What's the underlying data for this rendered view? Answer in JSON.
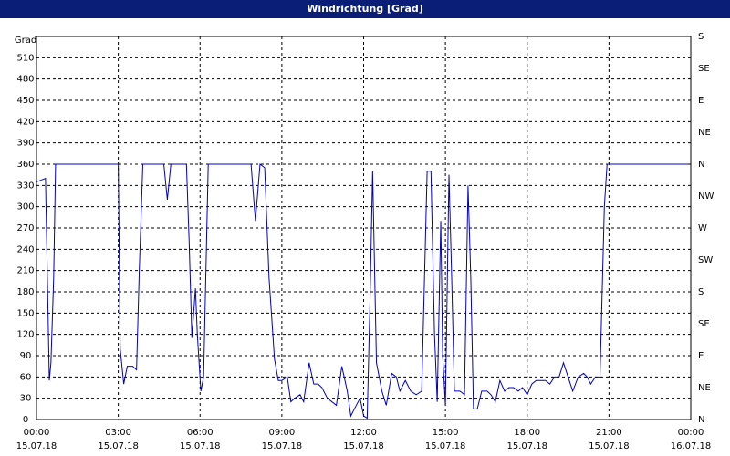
{
  "chart_data": {
    "type": "line",
    "title": "Windrichtung [Grad]",
    "y_label": "Grad",
    "xlim": [
      0,
      24
    ],
    "ylim": [
      0,
      540
    ],
    "y2lim": [
      0,
      540
    ],
    "grid": true,
    "xticks": [
      {
        "value": 0,
        "label": "00:00",
        "date": "15.07.18"
      },
      {
        "value": 3,
        "label": "03:00",
        "date": "15.07.18"
      },
      {
        "value": 6,
        "label": "06:00",
        "date": "15.07.18"
      },
      {
        "value": 9,
        "label": "09:00",
        "date": "15.07.18"
      },
      {
        "value": 12,
        "label": "12:00",
        "date": "15.07.18"
      },
      {
        "value": 15,
        "label": "15:00",
        "date": "15.07.18"
      },
      {
        "value": 18,
        "label": "18:00",
        "date": "15.07.18"
      },
      {
        "value": 21,
        "label": "21:00",
        "date": "15.07.18"
      },
      {
        "value": 24,
        "label": "00:00",
        "date": "16.07.18"
      }
    ],
    "yticks": [
      0,
      30,
      60,
      90,
      120,
      150,
      180,
      210,
      240,
      270,
      300,
      330,
      360,
      390,
      420,
      450,
      480,
      510
    ],
    "y2ticks": [
      {
        "value": 0,
        "label": "N"
      },
      {
        "value": 45,
        "label": "NE"
      },
      {
        "value": 90,
        "label": "E"
      },
      {
        "value": 135,
        "label": "SE"
      },
      {
        "value": 180,
        "label": "S"
      },
      {
        "value": 225,
        "label": "SW"
      },
      {
        "value": 270,
        "label": "W"
      },
      {
        "value": 315,
        "label": "NW"
      },
      {
        "value": 360,
        "label": "N"
      },
      {
        "value": 405,
        "label": "NE"
      },
      {
        "value": 450,
        "label": "E"
      },
      {
        "value": 495,
        "label": "SE"
      },
      {
        "value": 540,
        "label": "S"
      }
    ],
    "series": [
      {
        "name": "Windrichtung",
        "color": "#0000c0",
        "x": [
          0,
          0.33,
          0.47,
          0.53,
          0.63,
          0.7,
          3,
          3.07,
          3.2,
          3.33,
          3.53,
          3.67,
          3.77,
          3.9,
          4.67,
          4.8,
          4.93,
          5.5,
          5.6,
          5.7,
          5.83,
          5.9,
          6.03,
          6.13,
          6.3,
          7.87,
          8.03,
          8.2,
          8.37,
          8.53,
          8.73,
          8.87,
          9,
          9.2,
          9.33,
          9.47,
          9.67,
          9.8,
          10,
          10.17,
          10.33,
          10.47,
          10.67,
          11,
          11.2,
          11.4,
          11.53,
          11.73,
          11.87,
          12,
          12.13,
          12.23,
          12.33,
          12.47,
          12.67,
          12.83,
          13.03,
          13.2,
          13.33,
          13.53,
          13.73,
          13.93,
          14.13,
          14.33,
          14.47,
          14.6,
          14.7,
          14.83,
          14.9,
          15,
          15.13,
          15.23,
          15.33,
          15.53,
          15.7,
          15.83,
          15.93,
          16.03,
          16.17,
          16.33,
          16.53,
          16.67,
          16.83,
          17,
          17.17,
          17.33,
          17.5,
          17.67,
          17.83,
          18,
          18.17,
          18.33,
          18.67,
          18.83,
          19,
          19.17,
          19.33,
          19.5,
          19.67,
          19.87,
          20.07,
          20.2,
          20.33,
          20.5,
          20.67,
          20.83,
          20.93,
          23.9
        ],
        "values": [
          335,
          340,
          55,
          80,
          200,
          360,
          360,
          100,
          50,
          75,
          75,
          70,
          210,
          360,
          360,
          310,
          360,
          360,
          250,
          115,
          185,
          120,
          40,
          60,
          360,
          360,
          280,
          360,
          355,
          200,
          85,
          55,
          55,
          60,
          25,
          30,
          35,
          25,
          80,
          50,
          50,
          45,
          30,
          20,
          75,
          40,
          5,
          20,
          30,
          5,
          2,
          160,
          350,
          80,
          40,
          20,
          65,
          60,
          40,
          55,
          40,
          35,
          40,
          350,
          350,
          120,
          25,
          280,
          90,
          20,
          345,
          200,
          40,
          40,
          35,
          330,
          200,
          15,
          15,
          40,
          40,
          35,
          25,
          55,
          40,
          45,
          45,
          40,
          45,
          35,
          50,
          55,
          55,
          50,
          60,
          60,
          80,
          60,
          40,
          60,
          65,
          60,
          50,
          60,
          60,
          300,
          360,
          360
        ]
      }
    ]
  }
}
